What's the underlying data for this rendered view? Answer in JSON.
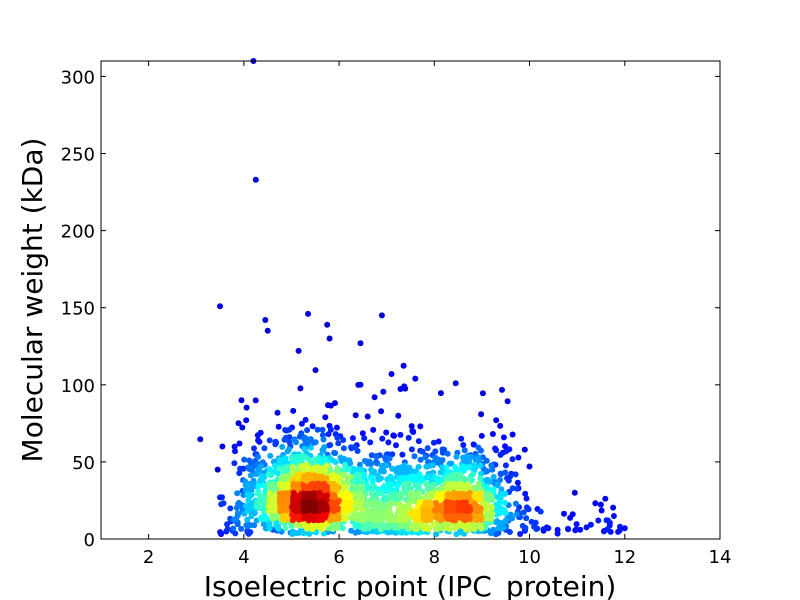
{
  "chart_data": {
    "type": "scatter",
    "title": "",
    "xlabel": "Isoelectric point (IPC_protein)",
    "ylabel": "Molecular weight (kDa)",
    "xlim": [
      1,
      14
    ],
    "ylim": [
      0,
      310
    ],
    "xticks": [
      2,
      4,
      6,
      8,
      10,
      12,
      14
    ],
    "yticks": [
      0,
      50,
      100,
      150,
      200,
      250,
      300
    ],
    "grid": false,
    "legend": "none",
    "colormap": "jet (point density)",
    "colors": {
      "low_density": "#00008f",
      "mid_density": "#00ffff",
      "high_density": "#800000"
    },
    "clusters": [
      {
        "center_x": 5.4,
        "center_y": 25,
        "description": "acidic cluster, highest density"
      },
      {
        "center_x": 8.5,
        "center_y": 21,
        "description": "basic cluster"
      }
    ],
    "outliers": [
      {
        "x": 4.2,
        "y": 310
      },
      {
        "x": 4.25,
        "y": 233
      },
      {
        "x": 3.5,
        "y": 151
      },
      {
        "x": 4.45,
        "y": 142
      },
      {
        "x": 4.5,
        "y": 135
      },
      {
        "x": 5.35,
        "y": 146
      },
      {
        "x": 6.9,
        "y": 145
      },
      {
        "x": 5.75,
        "y": 139
      },
      {
        "x": 5.15,
        "y": 122
      },
      {
        "x": 6.45,
        "y": 127
      },
      {
        "x": 5.8,
        "y": 130
      },
      {
        "x": 3.95,
        "y": 90
      },
      {
        "x": 8.45,
        "y": 101
      },
      {
        "x": 7.1,
        "y": 107
      },
      {
        "x": 7.6,
        "y": 104
      },
      {
        "x": 9.3,
        "y": 77
      },
      {
        "x": 9.9,
        "y": 58
      },
      {
        "x": 10.0,
        "y": 47
      },
      {
        "x": 10.95,
        "y": 30
      },
      {
        "x": 12.0,
        "y": 7
      },
      {
        "x": 11.9,
        "y": 8
      },
      {
        "x": 3.45,
        "y": 45
      },
      {
        "x": 3.5,
        "y": 27
      },
      {
        "x": 3.55,
        "y": 60
      }
    ]
  }
}
